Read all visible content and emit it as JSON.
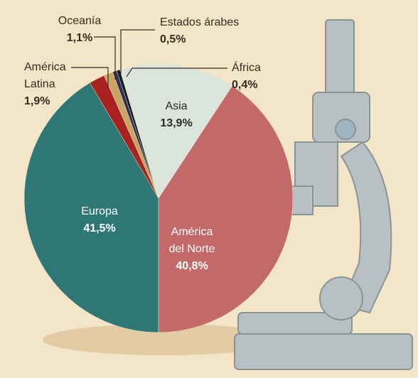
{
  "chart_data": {
    "type": "pie",
    "categories": [
      "Europa",
      "América Latina",
      "Oceanía",
      "Estados árabes",
      "África",
      "Asia",
      "América del Norte"
    ],
    "values": [
      41.5,
      1.9,
      1.1,
      0.5,
      0.4,
      13.9,
      40.8
    ],
    "value_labels": [
      "41,5%",
      "1,9%",
      "1,1%",
      "0,5%",
      "0,4%",
      "13,9%",
      "40,8%"
    ],
    "colors": [
      "#2e7775",
      "#a8221f",
      "#c9a465",
      "#2b3152",
      "#1a1a26",
      "#dce5dc",
      "#c4696a"
    ]
  }
}
